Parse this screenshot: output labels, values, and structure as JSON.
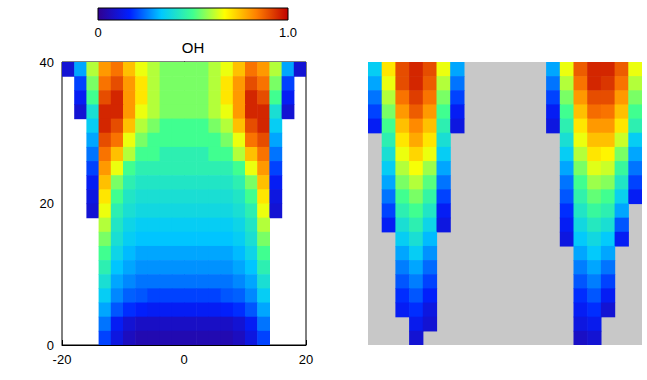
{
  "chart_data": [
    {
      "type": "heatmap",
      "xlim": [
        -20,
        20
      ],
      "ylim": [
        0,
        40
      ],
      "xticks": [
        -20,
        0,
        20
      ],
      "yticks": [
        0,
        20,
        40
      ],
      "colorbar": {
        "label": "OH",
        "range": [
          0,
          1
        ],
        "ticks": [
          0,
          {
            "value": 1,
            "label": "1.0"
          }
        ]
      },
      "cells": [
        [
          0.1,
          0.3,
          0.6,
          0.8,
          0.85,
          0.75,
          0.65,
          0.6,
          0.55,
          0.55,
          0.55,
          0.55,
          0.6,
          0.65,
          0.75,
          0.85,
          0.8,
          0.6,
          0.3,
          0.1
        ],
        [
          null,
          0.2,
          0.55,
          0.85,
          0.9,
          0.8,
          0.7,
          0.6,
          0.55,
          0.55,
          0.55,
          0.55,
          0.6,
          0.7,
          0.8,
          0.9,
          0.85,
          0.55,
          0.2,
          null
        ],
        [
          null,
          0.15,
          0.5,
          0.9,
          0.95,
          0.8,
          0.7,
          0.6,
          0.55,
          0.55,
          0.55,
          0.55,
          0.6,
          0.7,
          0.8,
          0.95,
          0.9,
          0.5,
          0.15,
          null
        ],
        [
          null,
          0.1,
          0.4,
          0.95,
          0.95,
          0.8,
          0.65,
          0.6,
          0.55,
          0.55,
          0.55,
          0.55,
          0.6,
          0.65,
          0.8,
          0.95,
          0.95,
          0.4,
          0.1,
          null
        ],
        [
          null,
          null,
          0.35,
          0.95,
          0.9,
          0.75,
          0.6,
          0.55,
          0.5,
          0.5,
          0.5,
          0.5,
          0.55,
          0.6,
          0.75,
          0.9,
          0.95,
          0.35,
          null,
          null
        ],
        [
          null,
          null,
          0.3,
          0.9,
          0.85,
          0.65,
          0.55,
          0.5,
          0.5,
          0.5,
          0.5,
          0.5,
          0.5,
          0.55,
          0.65,
          0.85,
          0.9,
          0.3,
          null,
          null
        ],
        [
          null,
          null,
          0.25,
          0.85,
          0.75,
          0.6,
          0.5,
          0.5,
          0.45,
          0.45,
          0.45,
          0.45,
          0.5,
          0.5,
          0.6,
          0.75,
          0.85,
          0.25,
          null,
          null
        ],
        [
          null,
          null,
          0.2,
          0.8,
          0.65,
          0.5,
          0.45,
          0.45,
          0.45,
          0.45,
          0.45,
          0.45,
          0.45,
          0.45,
          0.5,
          0.65,
          0.8,
          0.2,
          null,
          null
        ],
        [
          null,
          null,
          0.15,
          0.75,
          0.55,
          0.45,
          0.42,
          0.42,
          0.42,
          0.42,
          0.42,
          0.42,
          0.42,
          0.42,
          0.45,
          0.55,
          0.75,
          0.15,
          null,
          null
        ],
        [
          null,
          null,
          0.12,
          0.7,
          0.5,
          0.42,
          0.4,
          0.4,
          0.4,
          0.4,
          0.4,
          0.4,
          0.4,
          0.4,
          0.42,
          0.5,
          0.7,
          0.12,
          null,
          null
        ],
        [
          null,
          null,
          0.1,
          0.65,
          0.45,
          0.4,
          0.38,
          0.38,
          0.38,
          0.38,
          0.38,
          0.38,
          0.38,
          0.38,
          0.4,
          0.45,
          0.65,
          0.1,
          null,
          null
        ],
        [
          null,
          null,
          null,
          0.6,
          0.42,
          0.37,
          0.35,
          0.35,
          0.35,
          0.35,
          0.35,
          0.35,
          0.35,
          0.35,
          0.37,
          0.42,
          0.6,
          null,
          null,
          null
        ],
        [
          null,
          null,
          null,
          0.55,
          0.4,
          0.35,
          0.33,
          0.33,
          0.33,
          0.33,
          0.33,
          0.33,
          0.33,
          0.33,
          0.35,
          0.4,
          0.55,
          null,
          null,
          null
        ],
        [
          null,
          null,
          null,
          0.5,
          0.37,
          0.32,
          0.3,
          0.3,
          0.3,
          0.3,
          0.3,
          0.3,
          0.3,
          0.3,
          0.32,
          0.37,
          0.5,
          null,
          null,
          null
        ],
        [
          null,
          null,
          null,
          0.45,
          0.33,
          0.3,
          0.28,
          0.28,
          0.28,
          0.28,
          0.28,
          0.28,
          0.28,
          0.28,
          0.3,
          0.33,
          0.45,
          null,
          null,
          null
        ],
        [
          null,
          null,
          null,
          0.4,
          0.3,
          0.27,
          0.25,
          0.25,
          0.25,
          0.25,
          0.25,
          0.25,
          0.25,
          0.25,
          0.27,
          0.3,
          0.4,
          null,
          null,
          null
        ],
        [
          null,
          null,
          null,
          0.35,
          0.27,
          0.23,
          0.22,
          0.2,
          0.2,
          0.2,
          0.2,
          0.2,
          0.2,
          0.22,
          0.23,
          0.27,
          0.35,
          null,
          null,
          null
        ],
        [
          null,
          null,
          null,
          0.3,
          0.22,
          0.18,
          0.16,
          0.15,
          0.15,
          0.15,
          0.15,
          0.15,
          0.15,
          0.16,
          0.18,
          0.22,
          0.3,
          null,
          null,
          null
        ],
        [
          null,
          null,
          null,
          0.25,
          0.15,
          0.1,
          0.08,
          0.08,
          0.08,
          0.08,
          0.08,
          0.08,
          0.08,
          0.08,
          0.1,
          0.15,
          0.25,
          null,
          null,
          null
        ],
        [
          null,
          null,
          null,
          0.2,
          0.12,
          0.07,
          0.05,
          0.05,
          0.05,
          0.05,
          0.05,
          0.05,
          0.05,
          0.05,
          0.07,
          0.12,
          0.2,
          null,
          null,
          null
        ]
      ]
    },
    {
      "type": "heatmap",
      "tick_labels": false,
      "cells": [
        [
          0.35,
          0.7,
          0.9,
          0.95,
          0.9,
          0.65,
          0.3,
          null,
          null,
          null,
          null,
          null,
          null,
          0.3,
          0.65,
          0.88,
          0.95,
          0.95,
          0.88,
          0.65
        ],
        [
          0.3,
          0.65,
          0.9,
          0.95,
          0.88,
          0.6,
          0.25,
          null,
          null,
          null,
          null,
          null,
          null,
          0.25,
          0.6,
          0.85,
          0.95,
          0.93,
          0.85,
          0.6
        ],
        [
          0.25,
          0.6,
          0.85,
          0.92,
          0.85,
          0.55,
          0.2,
          null,
          null,
          null,
          null,
          null,
          null,
          0.2,
          0.55,
          0.8,
          0.9,
          0.9,
          0.8,
          0.55
        ],
        [
          0.2,
          0.55,
          0.8,
          0.88,
          0.8,
          0.5,
          0.15,
          null,
          null,
          null,
          null,
          null,
          null,
          0.15,
          0.5,
          0.75,
          0.86,
          0.85,
          0.75,
          0.5
        ],
        [
          0.15,
          0.5,
          0.75,
          0.82,
          0.75,
          0.45,
          0.12,
          null,
          null,
          null,
          null,
          null,
          null,
          0.12,
          0.45,
          0.7,
          0.8,
          0.8,
          0.7,
          0.45
        ],
        [
          null,
          0.45,
          0.7,
          0.78,
          0.7,
          0.4,
          null,
          null,
          null,
          null,
          null,
          null,
          null,
          null,
          0.4,
          0.65,
          0.75,
          0.75,
          0.62,
          0.35
        ],
        [
          null,
          0.4,
          0.65,
          0.72,
          0.65,
          0.35,
          null,
          null,
          null,
          null,
          null,
          null,
          null,
          null,
          0.35,
          0.6,
          0.7,
          0.68,
          0.55,
          0.3
        ],
        [
          null,
          0.35,
          0.6,
          0.66,
          0.58,
          0.3,
          null,
          null,
          null,
          null,
          null,
          null,
          null,
          null,
          0.3,
          0.55,
          0.64,
          0.62,
          0.48,
          0.25
        ],
        [
          null,
          0.3,
          0.55,
          0.6,
          0.52,
          0.25,
          null,
          null,
          null,
          null,
          null,
          null,
          null,
          null,
          0.25,
          0.5,
          0.58,
          0.56,
          0.42,
          0.2
        ],
        [
          null,
          0.25,
          0.5,
          0.55,
          0.47,
          0.2,
          null,
          null,
          null,
          null,
          null,
          null,
          null,
          null,
          0.22,
          0.46,
          0.53,
          0.5,
          0.36,
          0.15
        ],
        [
          null,
          0.2,
          0.45,
          0.5,
          0.42,
          0.15,
          null,
          null,
          null,
          null,
          null,
          null,
          null,
          null,
          0.18,
          0.42,
          0.48,
          0.45,
          0.3,
          null
        ],
        [
          null,
          0.15,
          0.4,
          0.45,
          0.37,
          0.12,
          null,
          null,
          null,
          null,
          null,
          null,
          null,
          null,
          0.15,
          0.38,
          0.43,
          0.4,
          0.22,
          null
        ],
        [
          null,
          null,
          0.35,
          0.4,
          0.32,
          null,
          null,
          null,
          null,
          null,
          null,
          null,
          null,
          null,
          0.12,
          0.34,
          0.38,
          0.34,
          0.15,
          null
        ],
        [
          null,
          null,
          0.3,
          0.35,
          0.28,
          null,
          null,
          null,
          null,
          null,
          null,
          null,
          null,
          null,
          null,
          0.3,
          0.34,
          0.3,
          null,
          null
        ],
        [
          null,
          null,
          0.26,
          0.3,
          0.24,
          null,
          null,
          null,
          null,
          null,
          null,
          null,
          null,
          null,
          null,
          0.26,
          0.3,
          0.25,
          null,
          null
        ],
        [
          null,
          null,
          0.22,
          0.26,
          0.2,
          null,
          null,
          null,
          null,
          null,
          null,
          null,
          null,
          null,
          null,
          0.22,
          0.26,
          0.2,
          null,
          null
        ],
        [
          null,
          null,
          0.18,
          0.22,
          0.16,
          null,
          null,
          null,
          null,
          null,
          null,
          null,
          null,
          null,
          null,
          0.18,
          0.22,
          0.15,
          null,
          null
        ],
        [
          null,
          null,
          0.15,
          0.18,
          0.12,
          null,
          null,
          null,
          null,
          null,
          null,
          null,
          null,
          null,
          null,
          0.15,
          0.18,
          0.1,
          null,
          null
        ],
        [
          null,
          null,
          null,
          0.14,
          0.1,
          null,
          null,
          null,
          null,
          null,
          null,
          null,
          null,
          null,
          null,
          0.12,
          0.14,
          null,
          null,
          null
        ],
        [
          null,
          null,
          null,
          0.1,
          null,
          null,
          null,
          null,
          null,
          null,
          null,
          null,
          null,
          null,
          null,
          0.08,
          0.1,
          null,
          null,
          null
        ]
      ]
    }
  ]
}
